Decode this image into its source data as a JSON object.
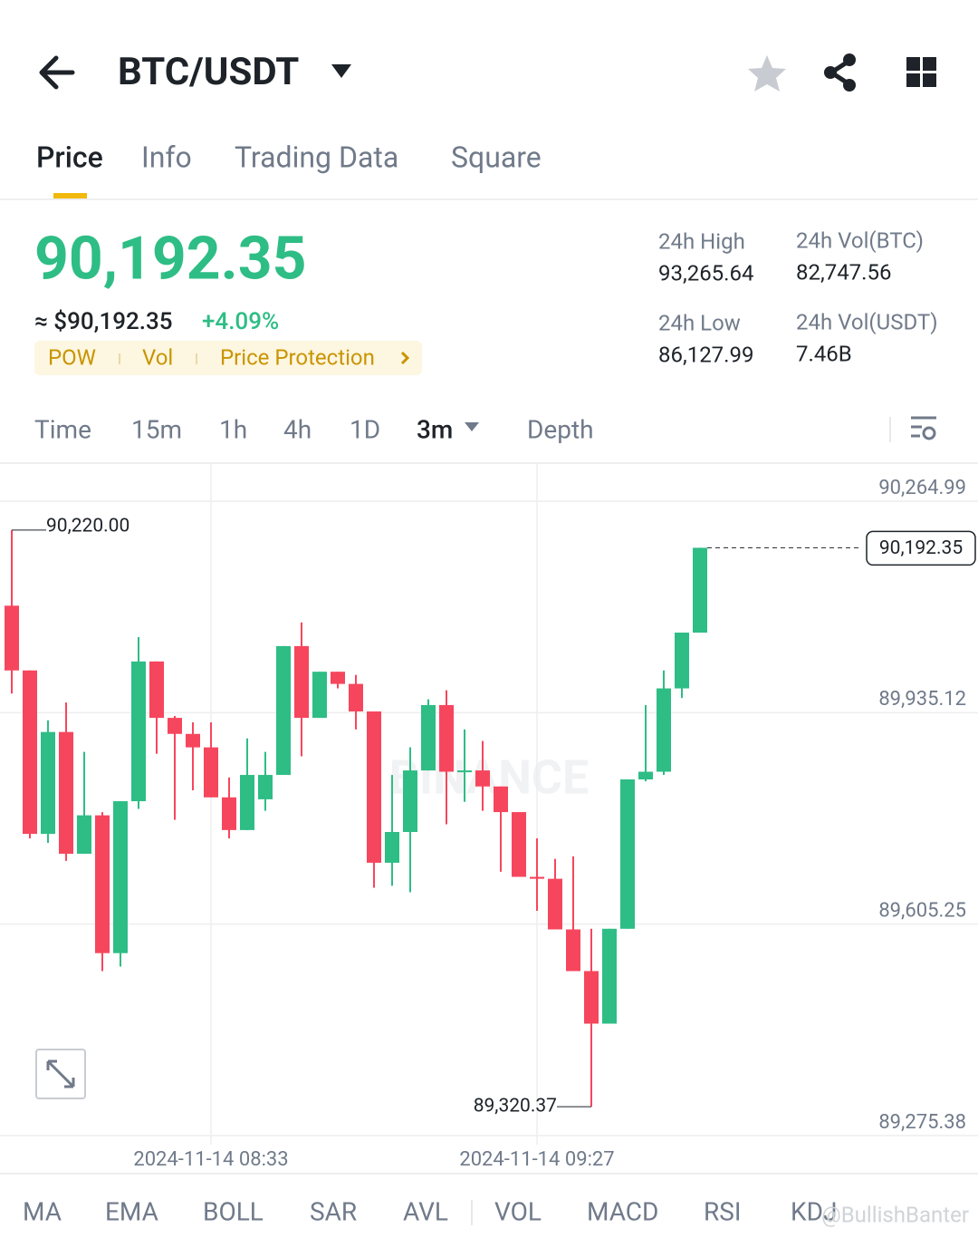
{
  "header": {
    "pair": "BTC/USDT"
  },
  "tabs": [
    "Price",
    "Info",
    "Trading Data",
    "Square"
  ],
  "ticker": {
    "price": "90,192.35",
    "usd_price": "≈ $90,192.35",
    "change": "+4.09%",
    "tags": [
      "POW",
      "Vol",
      "Price Protection"
    ],
    "stats": [
      {
        "label": "24h High",
        "value": "93,265.64"
      },
      {
        "label": "24h Vol(BTC)",
        "value": "82,747.56"
      },
      {
        "label": "24h Low",
        "value": "86,127.99"
      },
      {
        "label": "24h Vol(USDT)",
        "value": "7.46B"
      }
    ]
  },
  "intervals": [
    "Time",
    "15m",
    "1h",
    "4h",
    "1D",
    "3m",
    "Depth"
  ],
  "chart_data": {
    "type": "candlestick",
    "watermark": "BINANCE",
    "categories": [
      null,
      null,
      null,
      null,
      null,
      null,
      null,
      null,
      null,
      null,
      null,
      "2024-11-14 08:33",
      null,
      null,
      null,
      null,
      null,
      null,
      null,
      null,
      null,
      null,
      null,
      null,
      null,
      null,
      null,
      null,
      null,
      "2024-11-14 09:27",
      null,
      null,
      null,
      null,
      null,
      null,
      null,
      null,
      null
    ],
    "open": [
      90102,
      90001,
      89746,
      89905,
      89715,
      89775,
      89560,
      89797,
      90015,
      89927,
      89902,
      89881,
      89803,
      89752,
      89800,
      89838,
      90039,
      89927,
      89999,
      89980,
      89937,
      89701,
      89749,
      89845,
      89947,
      89843,
      89845,
      89820,
      89780,
      89679,
      89676,
      89597,
      89532,
      89450,
      89598,
      89831,
      89843,
      89973,
      90060
    ],
    "high": [
      90220,
      90001,
      89923,
      89951,
      89874,
      89780,
      89797,
      90053,
      90015,
      89930,
      89920,
      89920,
      89834,
      89895,
      89874,
      90039,
      90076,
      89999,
      89999,
      89994,
      89937,
      89838,
      89881,
      89956,
      89970,
      89909,
      89891,
      89820,
      89780,
      89739,
      89707,
      89711,
      89598,
      89598,
      89831,
      89947,
      90001,
      90060,
      90192.35
    ],
    "low": [
      89965,
      89739,
      89732,
      89704,
      89715,
      89532,
      89539,
      89785,
      89871,
      89768,
      89814,
      89803,
      89739,
      89752,
      89782,
      89838,
      89867,
      89927,
      89973,
      89909,
      89662,
      89665,
      89655,
      89845,
      89761,
      89796,
      89782,
      89687,
      89679,
      89626,
      89597,
      89532,
      89320.37,
      89450,
      89598,
      89828,
      89838,
      89958,
      90060
    ],
    "close": [
      90001,
      89746,
      89905,
      89715,
      89775,
      89560,
      89797,
      90015,
      89927,
      89902,
      89881,
      89803,
      89752,
      89838,
      89838,
      90039,
      89927,
      89999,
      89980,
      89937,
      89701,
      89749,
      89845,
      89947,
      89843,
      89845,
      89820,
      89780,
      89679,
      89676,
      89597,
      89532,
      89450,
      89598,
      89831,
      89843,
      89973,
      90060,
      90192.35
    ],
    "up_color": "#2ebd85",
    "down_color": "#f6465d",
    "high_label": "90,220.00",
    "low_label": "89,320.37",
    "last_label": "90,192.35",
    "ylim": [
      89275.38,
      90323
    ],
    "yticks": [
      {
        "value": 90264.99,
        "label": "90,264.99"
      },
      {
        "value": 89935.12,
        "label": "89,935.12"
      },
      {
        "value": 89605.25,
        "label": "89,605.25"
      },
      {
        "value": 89275.38,
        "label": "89,275.38"
      }
    ],
    "grid": true
  },
  "indicators": [
    "MA",
    "EMA",
    "BOLL",
    "SAR",
    "AVL",
    "VOL",
    "MACD",
    "RSI",
    "KDJ"
  ],
  "credit": "@BullishBanter"
}
